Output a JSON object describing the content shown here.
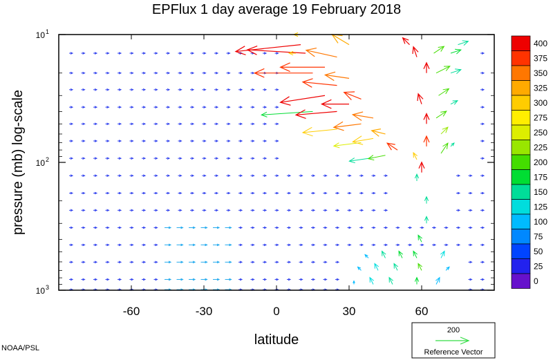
{
  "chart_data": {
    "type": "vector-field",
    "title": "EPFlux  1 day average  19 February  2018",
    "xlabel": "latitude",
    "ylabel": "pressure (mb)  log-scale",
    "xlim": [
      -90,
      90
    ],
    "ylim": [
      1000,
      10
    ],
    "yscale": "log",
    "x_ticks": [
      -60,
      -30,
      0,
      30,
      60
    ],
    "x_tick_labels": [
      "-60",
      "-30",
      "0",
      "30",
      "60"
    ],
    "y_ticks": [
      {
        "value": 10,
        "base": "10",
        "exp": "1"
      },
      {
        "value": 100,
        "base": "10",
        "exp": "2"
      },
      {
        "value": 1000,
        "base": "10",
        "exp": "3"
      }
    ],
    "colorbar": {
      "labels": [
        "400",
        "375",
        "350",
        "325",
        "300",
        "275",
        "250",
        "225",
        "200",
        "175",
        "150",
        "125",
        "100",
        "75",
        "50",
        "25",
        "0"
      ],
      "colors": [
        "#ee0000",
        "#ff3300",
        "#ff7700",
        "#ffaa00",
        "#ffcc00",
        "#ffee00",
        "#ddee00",
        "#99e600",
        "#44dd00",
        "#00dd33",
        "#00dd99",
        "#00dddd",
        "#00bbff",
        "#0088ff",
        "#0044ff",
        "#2222ee",
        "#6611cc"
      ]
    },
    "reference_vector": {
      "magnitude": "200",
      "label": "Reference Vector"
    },
    "credit": "NOAA/PSL",
    "vectors": [
      {
        "lat": 10,
        "p": 12,
        "u": -19,
        "v": -2,
        "mag": 420
      },
      {
        "lat": 12,
        "p": 14,
        "u": -17,
        "v": 1,
        "mag": 400
      },
      {
        "lat": 15,
        "p": 20,
        "u": -17,
        "v": 0,
        "mag": 390
      },
      {
        "lat": 20,
        "p": 18,
        "u": -13,
        "v": 0,
        "mag": 380
      },
      {
        "lat": 25,
        "p": 15,
        "u": -9,
        "v": 2,
        "mag": 360
      },
      {
        "lat": 30,
        "p": 12,
        "u": -5,
        "v": 3,
        "mag": 330
      },
      {
        "lat": 20,
        "p": 30,
        "u": -13,
        "v": -2,
        "mag": 400
      },
      {
        "lat": 25,
        "p": 25,
        "u": -10,
        "v": 1,
        "mag": 390
      },
      {
        "lat": 30,
        "p": 22,
        "u": -7,
        "v": 1,
        "mag": 370
      },
      {
        "lat": 15,
        "p": 40,
        "u": -15,
        "v": -1,
        "mag": 190
      },
      {
        "lat": 25,
        "p": 40,
        "u": -12,
        "v": -1,
        "mag": 400
      },
      {
        "lat": 30,
        "p": 35,
        "u": -8,
        "v": 0,
        "mag": 400
      },
      {
        "lat": 35,
        "p": 32,
        "u": -5,
        "v": 2,
        "mag": 390
      },
      {
        "lat": 25,
        "p": 55,
        "u": -10,
        "v": -1,
        "mag": 300
      },
      {
        "lat": 35,
        "p": 50,
        "u": -8,
        "v": -1,
        "mag": 350
      },
      {
        "lat": 40,
        "p": 45,
        "u": -6,
        "v": 1,
        "mag": 370
      },
      {
        "lat": 35,
        "p": 70,
        "u": -8,
        "v": -1,
        "mag": 250
      },
      {
        "lat": 40,
        "p": 65,
        "u": -6,
        "v": -1,
        "mag": 300
      },
      {
        "lat": 45,
        "p": 60,
        "u": -4,
        "v": 1,
        "mag": 330
      },
      {
        "lat": 40,
        "p": 92,
        "u": -7,
        "v": -1,
        "mag": 160
      },
      {
        "lat": 45,
        "p": 88,
        "u": -5,
        "v": -1,
        "mag": 200
      },
      {
        "lat": 50,
        "p": 80,
        "u": -3,
        "v": 2,
        "mag": 380
      },
      {
        "lat": 55,
        "p": 12,
        "u": -2,
        "v": 2,
        "mag": 400
      },
      {
        "lat": 58,
        "p": 15,
        "u": -1,
        "v": 3,
        "mag": 400
      },
      {
        "lat": 62,
        "p": 20,
        "u": 0,
        "v": 3,
        "mag": 400
      },
      {
        "lat": 60,
        "p": 35,
        "u": -1,
        "v": 3,
        "mag": 400
      },
      {
        "lat": 62,
        "p": 50,
        "u": 0,
        "v": 3,
        "mag": 400
      },
      {
        "lat": 62,
        "p": 75,
        "u": 0,
        "v": 3,
        "mag": 390
      },
      {
        "lat": 60,
        "p": 120,
        "u": 0,
        "v": 3,
        "mag": 420
      },
      {
        "lat": 58,
        "p": 95,
        "u": -1,
        "v": 2,
        "mag": 300
      },
      {
        "lat": 65,
        "p": 14,
        "u": 3,
        "v": 2,
        "mag": 210
      },
      {
        "lat": 66,
        "p": 20,
        "u": 4,
        "v": 2,
        "mag": 220
      },
      {
        "lat": 67,
        "p": 30,
        "u": 3,
        "v": 2,
        "mag": 200
      },
      {
        "lat": 66,
        "p": 45,
        "u": 3,
        "v": 2,
        "mag": 220
      },
      {
        "lat": 68,
        "p": 60,
        "u": 2,
        "v": 2,
        "mag": 230
      },
      {
        "lat": 68,
        "p": 85,
        "u": 2,
        "v": 3,
        "mag": 220
      },
      {
        "lat": 72,
        "p": 14,
        "u": 3,
        "v": 1,
        "mag": 180
      },
      {
        "lat": 72,
        "p": 20,
        "u": 3,
        "v": 1,
        "mag": 150
      },
      {
        "lat": 72,
        "p": 35,
        "u": 2,
        "v": 1,
        "mag": 150
      },
      {
        "lat": 72,
        "p": 75,
        "u": 1,
        "v": 1,
        "mag": 160
      },
      {
        "lat": 75,
        "p": 12,
        "u": 3,
        "v": 1,
        "mag": 150
      },
      {
        "lat": 58,
        "p": 140,
        "u": 0,
        "v": 2,
        "mag": 150
      },
      {
        "lat": 62,
        "p": 210,
        "u": 0,
        "v": 2,
        "mag": 160
      },
      {
        "lat": 62,
        "p": 300,
        "u": 0,
        "v": 2,
        "mag": 160
      },
      {
        "lat": 60,
        "p": 420,
        "u": -1,
        "v": 2,
        "mag": 180
      },
      {
        "lat": 58,
        "p": 560,
        "u": -1,
        "v": 2,
        "mag": 190
      },
      {
        "lat": 60,
        "p": 700,
        "u": -1,
        "v": 2,
        "mag": 200
      },
      {
        "lat": 58,
        "p": 900,
        "u": 0,
        "v": 2,
        "mag": 190
      },
      {
        "lat": 52,
        "p": 560,
        "u": -1,
        "v": 2,
        "mag": 180
      },
      {
        "lat": 50,
        "p": 700,
        "u": -1,
        "v": 2,
        "mag": 160
      },
      {
        "lat": 48,
        "p": 900,
        "u": -1,
        "v": 2,
        "mag": 160
      },
      {
        "lat": 45,
        "p": 560,
        "u": -1,
        "v": 2,
        "mag": 150
      },
      {
        "lat": 42,
        "p": 700,
        "u": -1,
        "v": 2,
        "mag": 140
      },
      {
        "lat": 40,
        "p": 900,
        "u": -1,
        "v": 2,
        "mag": 140
      },
      {
        "lat": 38,
        "p": 560,
        "u": -1,
        "v": 1,
        "mag": 120
      },
      {
        "lat": 35,
        "p": 700,
        "u": -1,
        "v": 1,
        "mag": 110
      },
      {
        "lat": 32,
        "p": 900,
        "u": 0,
        "v": 1,
        "mag": 110
      },
      {
        "lat": 68,
        "p": 560,
        "u": 1,
        "v": 2,
        "mag": 130
      },
      {
        "lat": 70,
        "p": 700,
        "u": 1,
        "v": 1,
        "mag": 100
      },
      {
        "lat": 66,
        "p": 900,
        "u": 1,
        "v": 2,
        "mag": 120
      },
      {
        "lat": 10,
        "p": 10,
        "u": -2,
        "v": 0,
        "mag": 320
      },
      {
        "lat": 8,
        "p": 14,
        "u": -2,
        "v": 0,
        "mag": 300
      }
    ]
  }
}
